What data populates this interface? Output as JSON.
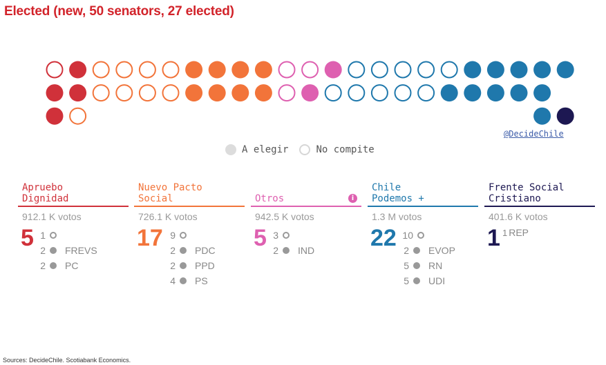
{
  "title": "Elected (new, 50 senators, 27 elected)",
  "credit": "@DecideChile",
  "legend": {
    "to_elect": "A elegir",
    "not_running": "No compite"
  },
  "colors": {
    "apruebo": "#d0313a",
    "nuevo_pacto": "#f2743a",
    "otros": "#de60b0",
    "chile_podemos": "#1f78ac",
    "frente_social": "#1d1852",
    "legend_grey": "#dcdcdc"
  },
  "chart_data": {
    "type": "seat-dot",
    "rows": [
      [
        {
          "color": "apruebo",
          "filled": false
        },
        {
          "color": "apruebo",
          "filled": true
        },
        {
          "color": "nuevo_pacto",
          "filled": false
        },
        {
          "color": "nuevo_pacto",
          "filled": false
        },
        {
          "color": "nuevo_pacto",
          "filled": false
        },
        {
          "color": "nuevo_pacto",
          "filled": false
        },
        {
          "color": "nuevo_pacto",
          "filled": true
        },
        {
          "color": "nuevo_pacto",
          "filled": true
        },
        {
          "color": "nuevo_pacto",
          "filled": true
        },
        {
          "color": "nuevo_pacto",
          "filled": true
        },
        {
          "color": "otros",
          "filled": false
        },
        {
          "color": "otros",
          "filled": false
        },
        {
          "color": "otros",
          "filled": true
        },
        {
          "color": "chile_podemos",
          "filled": false
        },
        {
          "color": "chile_podemos",
          "filled": false
        },
        {
          "color": "chile_podemos",
          "filled": false
        },
        {
          "color": "chile_podemos",
          "filled": false
        },
        {
          "color": "chile_podemos",
          "filled": false
        },
        {
          "color": "chile_podemos",
          "filled": true
        },
        {
          "color": "chile_podemos",
          "filled": true
        },
        {
          "color": "chile_podemos",
          "filled": true
        },
        {
          "color": "chile_podemos",
          "filled": true
        },
        {
          "color": "chile_podemos",
          "filled": true
        }
      ],
      [
        {
          "color": "apruebo",
          "filled": true
        },
        {
          "color": "apruebo",
          "filled": true
        },
        {
          "color": "nuevo_pacto",
          "filled": false
        },
        {
          "color": "nuevo_pacto",
          "filled": false
        },
        {
          "color": "nuevo_pacto",
          "filled": false
        },
        {
          "color": "nuevo_pacto",
          "filled": false
        },
        {
          "color": "nuevo_pacto",
          "filled": true
        },
        {
          "color": "nuevo_pacto",
          "filled": true
        },
        {
          "color": "nuevo_pacto",
          "filled": true
        },
        {
          "color": "nuevo_pacto",
          "filled": true
        },
        {
          "color": "otros",
          "filled": false
        },
        {
          "color": "otros",
          "filled": true
        },
        {
          "color": "chile_podemos",
          "filled": false
        },
        {
          "color": "chile_podemos",
          "filled": false
        },
        {
          "color": "chile_podemos",
          "filled": false
        },
        {
          "color": "chile_podemos",
          "filled": false
        },
        {
          "color": "chile_podemos",
          "filled": false
        },
        {
          "color": "chile_podemos",
          "filled": true
        },
        {
          "color": "chile_podemos",
          "filled": true
        },
        {
          "color": "chile_podemos",
          "filled": true
        },
        {
          "color": "chile_podemos",
          "filled": true
        },
        {
          "color": "chile_podemos",
          "filled": true
        }
      ],
      [
        {
          "color": "apruebo",
          "filled": true
        },
        {
          "color": "nuevo_pacto",
          "filled": false
        }
      ],
      [
        {
          "color": "chile_podemos",
          "filled": true
        },
        {
          "color": "frente_social",
          "filled": true
        }
      ]
    ],
    "blocs": [
      {
        "key": "apruebo",
        "name": "Apruebo\nDignidad",
        "votes": "912.1 K votos",
        "total": "5",
        "breakdown": [
          {
            "n": "1",
            "type": "hollow",
            "party": ""
          },
          {
            "n": "2",
            "type": "filled",
            "party": "FREVS"
          },
          {
            "n": "2",
            "type": "filled",
            "party": "PC"
          }
        ]
      },
      {
        "key": "nuevo_pacto",
        "name": "Nuevo Pacto\nSocial",
        "votes": "726.1 K votos",
        "total": "17",
        "breakdown": [
          {
            "n": "9",
            "type": "hollow",
            "party": ""
          },
          {
            "n": "2",
            "type": "filled",
            "party": "PDC"
          },
          {
            "n": "2",
            "type": "filled",
            "party": "PPD"
          },
          {
            "n": "4",
            "type": "filled",
            "party": "PS"
          }
        ]
      },
      {
        "key": "otros",
        "name": "Otros",
        "votes": "942.5 K votos",
        "total": "5",
        "info_icon": "info-icon",
        "breakdown": [
          {
            "n": "3",
            "type": "hollow",
            "party": ""
          },
          {
            "n": "2",
            "type": "filled",
            "party": "IND"
          }
        ]
      },
      {
        "key": "chile_podemos",
        "name": "Chile\nPodemos +",
        "votes": "1.3 M votos",
        "total": "22",
        "breakdown": [
          {
            "n": "10",
            "type": "hollow",
            "party": ""
          },
          {
            "n": "2",
            "type": "filled",
            "party": "EVOP"
          },
          {
            "n": "5",
            "type": "filled",
            "party": "RN"
          },
          {
            "n": "5",
            "type": "filled",
            "party": "UDI"
          }
        ]
      },
      {
        "key": "frente_social",
        "name": "Frente Social\nCristiano",
        "votes": "401.6 K votos",
        "total": "1",
        "breakdown": [
          {
            "n": "1",
            "type": "label",
            "party": "REP"
          }
        ]
      }
    ]
  },
  "source": "Sources: DecideChile. Scotiabank Economics."
}
